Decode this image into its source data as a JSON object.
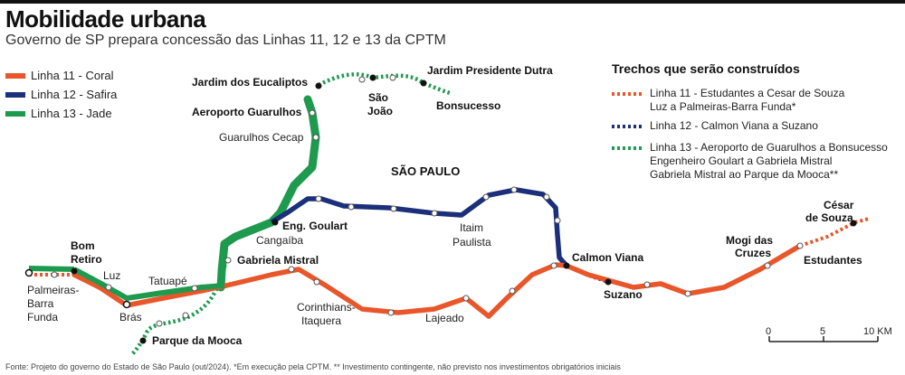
{
  "header": {
    "title": "Mobilidade urbana",
    "subtitle": "Governo de SP prepara concessão das Linhas 11, 12 e 13 da CPTM"
  },
  "legend": {
    "items": [
      {
        "label": "Linha 11 - Coral",
        "color": "#e8562a"
      },
      {
        "label": "Linha 12 - Safira",
        "color": "#1b2f7a"
      },
      {
        "label": "Linha 13 - Jade",
        "color": "#1e9a4e"
      }
    ]
  },
  "trechos": {
    "title": "Trechos que serão construídos",
    "items": [
      {
        "lines": [
          "Linha 11 - Estudantes a Cesar de Souza",
          "Luz a Palmeiras-Barra Funda*"
        ],
        "color": "#e8562a"
      },
      {
        "lines": [
          "Linha 12 - Calmon Viana a Suzano"
        ],
        "color": "#1b2f7a"
      },
      {
        "lines": [
          "Linha 13 - Aeroporto de Guarulhos a Bonsucesso",
          "Engenheiro Goulart a Gabriela Mistral",
          "Gabriela Mistral ao Parque da Mooca**"
        ],
        "color": "#1e9a4e"
      }
    ]
  },
  "map": {
    "region": "SÃO PAULO",
    "stations": {
      "jardim_eucaliptos": "Jardim dos Eucaliptos",
      "jardim_pres_dutra": "Jardim Presidente Dutra",
      "sao_joao_1": "São",
      "sao_joao_2": "João",
      "bonsucesso": "Bonsucesso",
      "aeroporto": "Aeroporto Guarulhos",
      "cecap": "Guarulhos Cecap",
      "eng_goulart": "Eng. Goulart",
      "cangaiba": "Cangaíba",
      "gabriela": "Gabriela Mistral",
      "bom_retiro_1": "Bom",
      "bom_retiro_2": "Retiro",
      "luz": "Luz",
      "tatuape": "Tatuapé",
      "palmeiras_1": "Palmeiras-",
      "palmeiras_2": "Barra",
      "palmeiras_3": "Funda",
      "bras": "Brás",
      "parque_mooca": "Parque da Mooca",
      "corinthians_1": "Corinthians-",
      "corinthians_2": "Itaquera",
      "lajeado": "Lajeado",
      "itaim_1": "Itaim",
      "itaim_2": "Paulista",
      "calmon": "Calmon Viana",
      "suzano": "Suzano",
      "mogi_1": "Mogi das",
      "mogi_2": "Cruzes",
      "estudantes": "Estudantes",
      "cesar_1": "César",
      "cesar_2": "de Souza"
    },
    "scale": {
      "labels": [
        "0",
        "5",
        "10 KM"
      ]
    }
  },
  "footer": {
    "text": "Fonte: Projeto do governo do Estado de São Paulo (out/2024). *Em execução pela CPTM. ** Investimento contingente, não previsto nos investimentos obrigatórios iniciais"
  }
}
